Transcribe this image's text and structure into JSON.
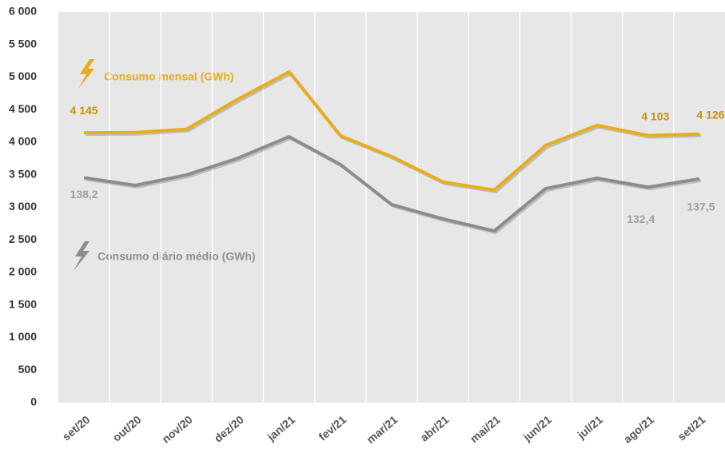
{
  "chart_data": {
    "type": "line",
    "categories": [
      "set/20",
      "out/20",
      "nov/20",
      "dez/20",
      "jan/21",
      "fev/21",
      "mar/21",
      "abr/21",
      "mai/21",
      "jun/21",
      "jul/21",
      "ago/21",
      "set/21"
    ],
    "series": [
      {
        "name": "Consumo mensal (GWh)",
        "color": "#e8ad1d",
        "values": [
          4145,
          4150,
          4200,
          4660,
          5080,
          4100,
          3780,
          3390,
          3265,
          3950,
          4260,
          4103,
          4126
        ],
        "value_labels": [
          "4 145",
          null,
          null,
          null,
          null,
          null,
          null,
          null,
          null,
          null,
          null,
          "4 103",
          "4 126"
        ]
      },
      {
        "name": "Consumo diário médio (GWh)",
        "color": "#8c8c8c",
        "axis": "y2",
        "values": [
          138.2,
          133.5,
          139.9,
          150.2,
          163.4,
          146.3,
          121.7,
          112.9,
          105.5,
          131.5,
          137.9,
          132.4,
          137.5
        ],
        "value_labels": [
          "138,2",
          null,
          null,
          null,
          null,
          null,
          null,
          null,
          null,
          null,
          null,
          "132,4",
          "137,5"
        ]
      }
    ],
    "ylim": [
      0,
      6000
    ],
    "yticks": [
      0,
      500,
      {
        "value": 1000,
        "label": "1 000"
      },
      {
        "value": 1500,
        "label": "1 500"
      },
      {
        "value": 2000,
        "label": "2 000"
      },
      {
        "value": 2500,
        "label": "2 500"
      },
      {
        "value": 3000,
        "label": "3 000"
      },
      {
        "value": 3500,
        "label": "3 500"
      },
      {
        "value": 4000,
        "label": "4 000"
      },
      {
        "value": 4500,
        "label": "4 500"
      },
      {
        "value": 5000,
        "label": "5 000"
      },
      {
        "value": 5500,
        "label": "5 500"
      },
      {
        "value": 6000,
        "label": "6 000"
      }
    ],
    "y2lim": [
      0,
      240
    ],
    "grid": true
  }
}
